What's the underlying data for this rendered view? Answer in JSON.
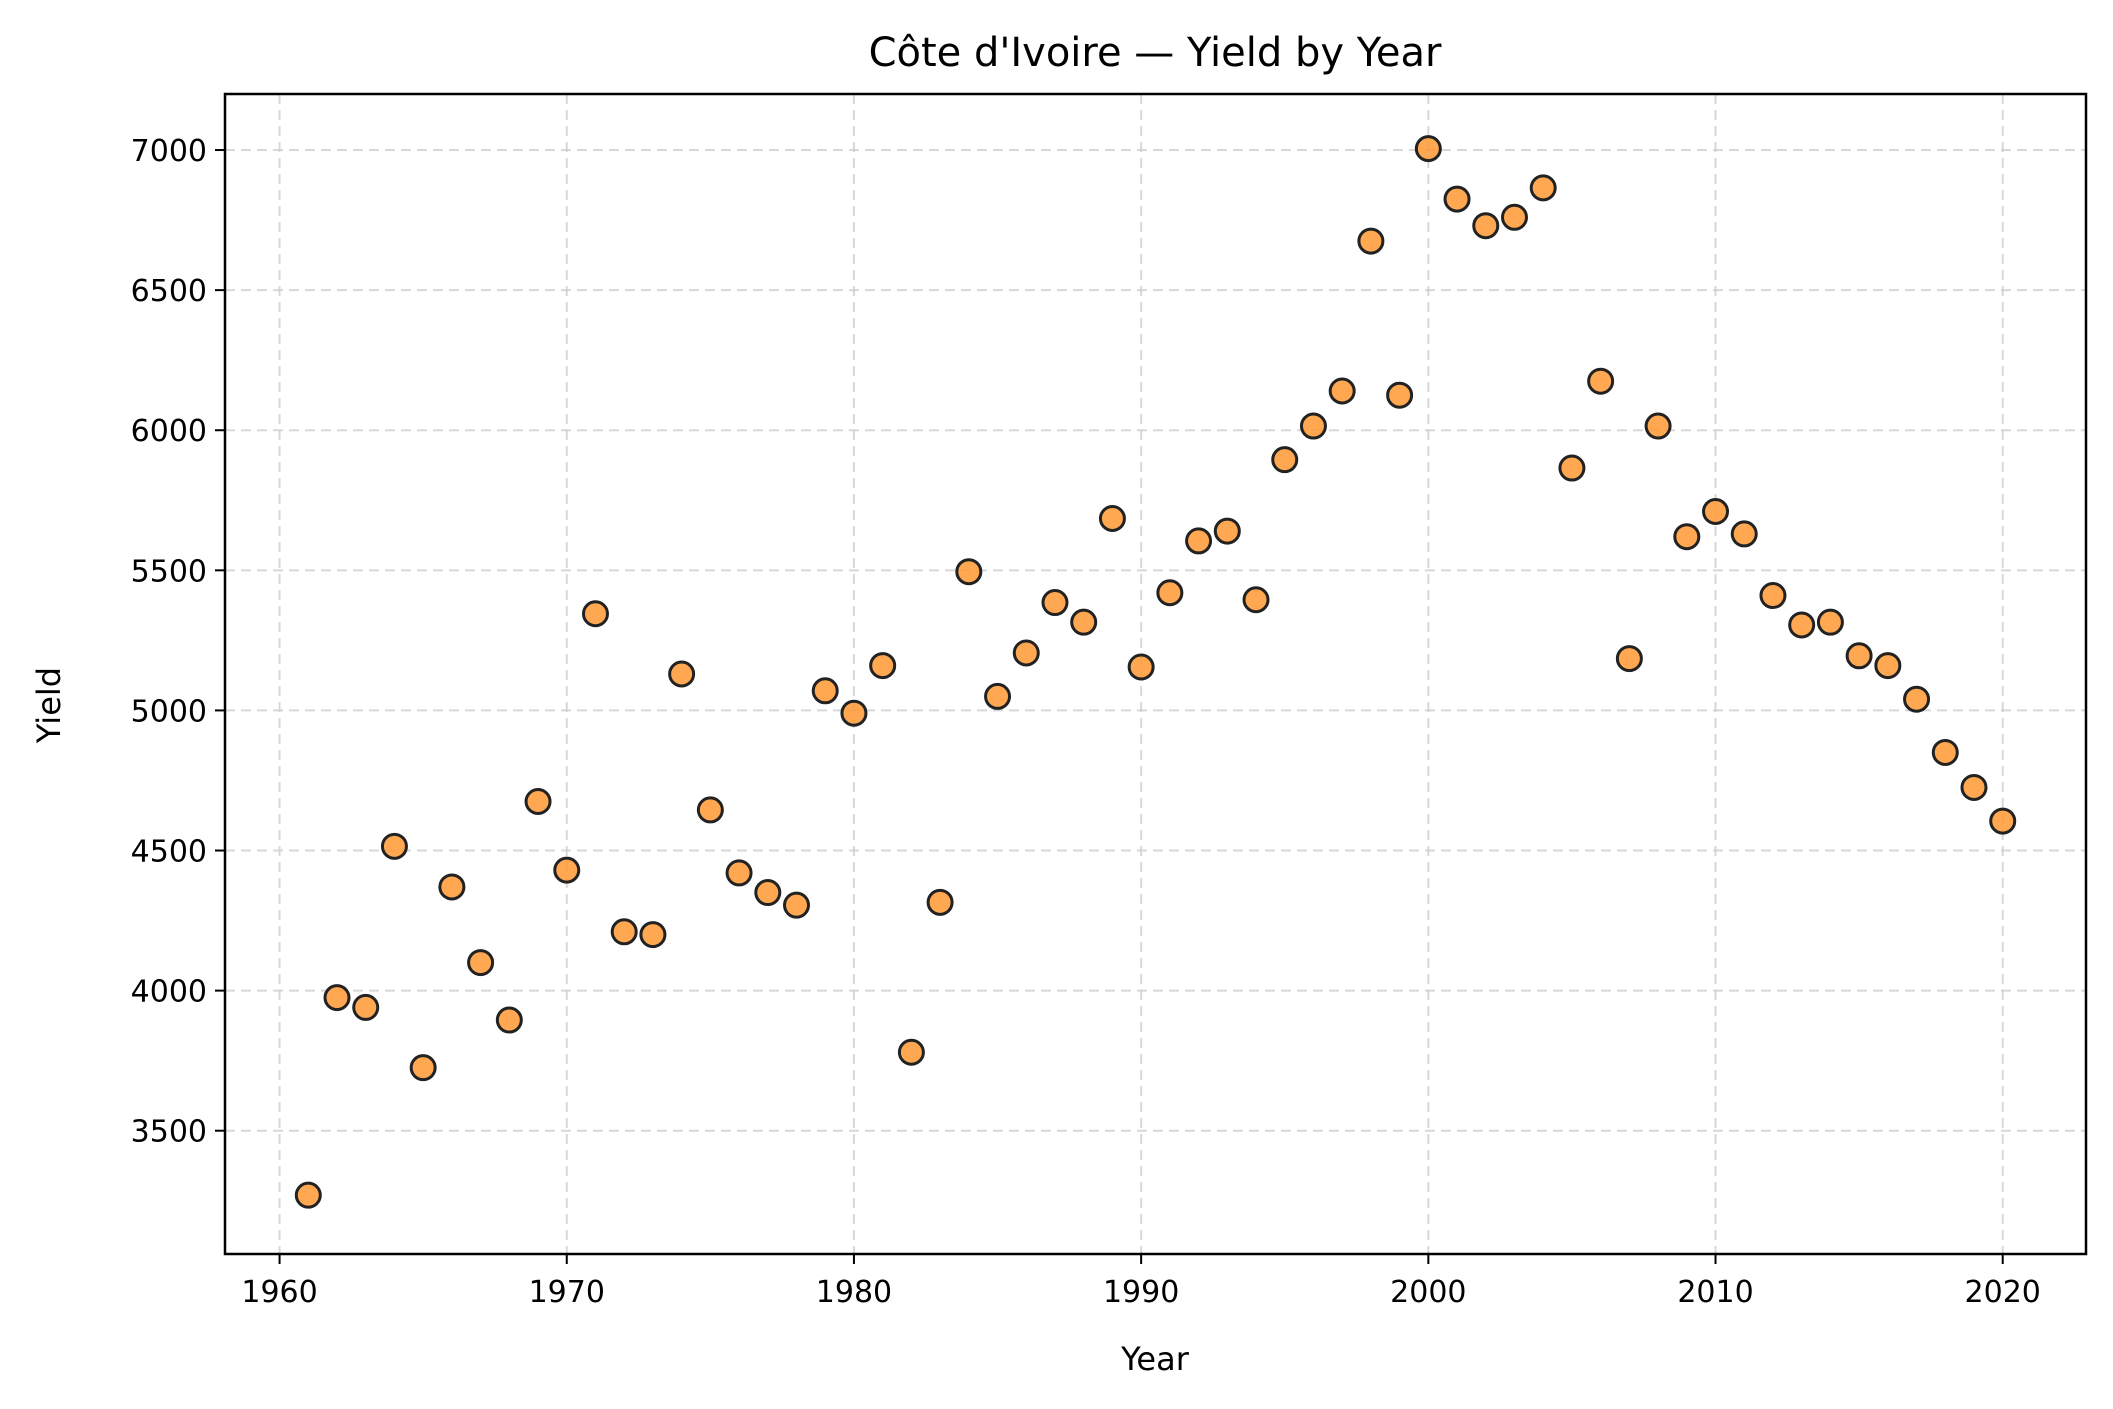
{
  "chart_data": {
    "type": "scatter",
    "title": "Côte d'Ivoire — Yield by Year",
    "xlabel": "Year",
    "ylabel": "Yield",
    "xlim": [
      1958.1,
      2022.9
    ],
    "ylim": [
      3060,
      7200
    ],
    "xticks": [
      1960,
      1970,
      1980,
      1990,
      2000,
      2010,
      2020
    ],
    "yticks": [
      3500,
      4000,
      4500,
      5000,
      5500,
      6000,
      6500,
      7000
    ],
    "grid": true,
    "marker_color": "#ff9933",
    "marker_edge_color": "#222222",
    "x": [
      1961,
      1962,
      1963,
      1964,
      1965,
      1966,
      1967,
      1968,
      1969,
      1970,
      1971,
      1972,
      1973,
      1974,
      1975,
      1976,
      1977,
      1978,
      1979,
      1980,
      1981,
      1982,
      1983,
      1984,
      1985,
      1986,
      1987,
      1988,
      1989,
      1990,
      1991,
      1992,
      1993,
      1994,
      1995,
      1996,
      1997,
      1998,
      1999,
      2000,
      2001,
      2002,
      2003,
      2004,
      2005,
      2006,
      2007,
      2008,
      2009,
      2010,
      2011,
      2012,
      2013,
      2014,
      2015,
      2016,
      2017,
      2018,
      2019,
      2020
    ],
    "y": [
      3270,
      3975,
      3940,
      4515,
      3725,
      4370,
      4100,
      3895,
      4675,
      4430,
      5345,
      4210,
      4200,
      5130,
      4645,
      4420,
      4350,
      4305,
      5070,
      4990,
      5160,
      3780,
      4315,
      5495,
      5050,
      5205,
      5385,
      5315,
      5685,
      5155,
      5420,
      5605,
      5640,
      5395,
      5895,
      6015,
      6140,
      6675,
      6125,
      7005,
      6825,
      6730,
      6760,
      6865,
      5865,
      6175,
      5185,
      6015,
      5620,
      5710,
      5630,
      5410,
      5305,
      5315,
      5195,
      5160,
      5040,
      4850,
      4725,
      4605
    ]
  }
}
